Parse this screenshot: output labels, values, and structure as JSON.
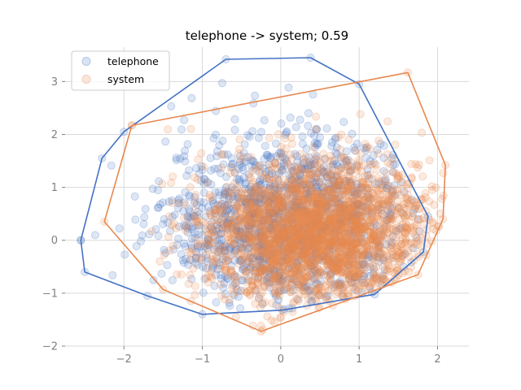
{
  "chart_data": {
    "type": "scatter",
    "title": "telephone -> system; 0.59",
    "xlabel": "",
    "ylabel": "",
    "xlim": [
      -2.75,
      2.4
    ],
    "ylim": [
      -2.0,
      3.65
    ],
    "xticks": [
      -2,
      -1,
      0,
      1,
      2
    ],
    "yticks": [
      -2,
      -1,
      0,
      1,
      2,
      3
    ],
    "grid": true,
    "legend": {
      "position": "top-left"
    },
    "series": [
      {
        "name": "telephone",
        "color": "#4472C4",
        "center": [
          0.1,
          0.35
        ],
        "spread": [
          0.78,
          0.8
        ],
        "count": 1400,
        "hull": [
          [
            -2.55,
            0.0
          ],
          [
            -2.28,
            1.55
          ],
          [
            -2.0,
            2.05
          ],
          [
            -0.7,
            3.42
          ],
          [
            0.38,
            3.45
          ],
          [
            1.0,
            2.95
          ],
          [
            1.88,
            0.45
          ],
          [
            1.82,
            -0.22
          ],
          [
            1.2,
            -1.02
          ],
          [
            0.02,
            -1.32
          ],
          [
            -1.0,
            -1.4
          ],
          [
            -1.7,
            -1.05
          ],
          [
            -2.5,
            -0.6
          ],
          [
            -2.55,
            0.0
          ]
        ]
      },
      {
        "name": "system",
        "color": "#E8884F",
        "center": [
          0.45,
          0.15
        ],
        "spread": [
          0.72,
          0.68
        ],
        "count": 2600,
        "hull": [
          [
            -1.9,
            2.17
          ],
          [
            1.62,
            3.17
          ],
          [
            2.1,
            1.42
          ],
          [
            2.07,
            0.4
          ],
          [
            1.75,
            -0.65
          ],
          [
            -0.25,
            -1.72
          ],
          [
            -1.5,
            -0.93
          ],
          [
            -2.25,
            0.35
          ],
          [
            -1.9,
            2.17
          ]
        ]
      }
    ]
  }
}
